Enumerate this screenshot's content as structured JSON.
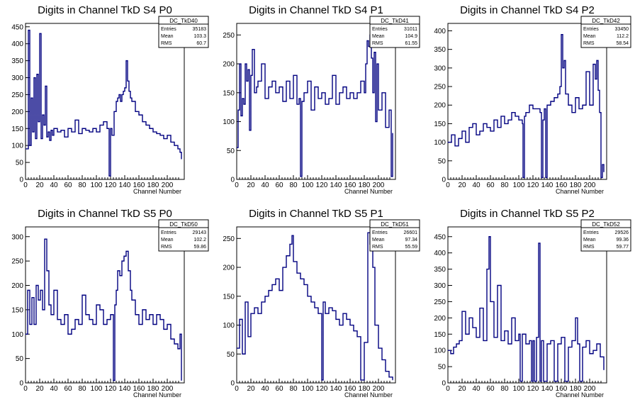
{
  "line_color": "#000080",
  "chart_data": [
    {
      "type": "line",
      "title": "Digits in Channel TkD S4 P0",
      "xlabel": "Channel Number",
      "ylabel": "",
      "xlim": [
        0,
        224
      ],
      "ylim": [
        0,
        460
      ],
      "xticks": [
        0,
        20,
        40,
        60,
        80,
        100,
        120,
        140,
        160,
        180,
        200
      ],
      "yticks": [
        0,
        50,
        100,
        150,
        200,
        250,
        300,
        350,
        400,
        450
      ],
      "stats": {
        "name": "DC_TkD40",
        "entries": "35183",
        "mean": "103.3",
        "rms": "60.7"
      },
      "series": [
        {
          "x": [
            0,
            4,
            6,
            8,
            10,
            12,
            14,
            16,
            18,
            20,
            22,
            24,
            26,
            28,
            30,
            32,
            34,
            36,
            38,
            40,
            45,
            50,
            55,
            60,
            65,
            70,
            75,
            80,
            85,
            90,
            95,
            100,
            105,
            110,
            115,
            118,
            120,
            122,
            125,
            128,
            130,
            132,
            134,
            136,
            138,
            140,
            142,
            144,
            146,
            148,
            150,
            155,
            160,
            165,
            170,
            175,
            180,
            185,
            190,
            195,
            200,
            205,
            210,
            215,
            218,
            220
          ],
          "y": [
            90,
            440,
            100,
            240,
            140,
            300,
            120,
            310,
            170,
            430,
            120,
            190,
            160,
            275,
            125,
            140,
            115,
            145,
            130,
            150,
            140,
            145,
            125,
            150,
            140,
            175,
            135,
            150,
            145,
            140,
            150,
            140,
            160,
            170,
            150,
            10,
            150,
            130,
            200,
            230,
            240,
            250,
            230,
            250,
            260,
            270,
            350,
            290,
            260,
            240,
            230,
            200,
            190,
            170,
            160,
            150,
            140,
            135,
            130,
            120,
            130,
            110,
            100,
            90,
            80,
            60
          ]
        }
      ]
    },
    {
      "type": "line",
      "title": "Digits in Channel TkD S4 P1",
      "xlabel": "Channel Number",
      "ylabel": "",
      "xlim": [
        0,
        224
      ],
      "ylim": [
        0,
        270
      ],
      "xticks": [
        0,
        20,
        40,
        60,
        80,
        100,
        120,
        140,
        160,
        180,
        200
      ],
      "yticks": [
        0,
        50,
        100,
        150,
        200,
        250
      ],
      "stats": {
        "name": "DC_TkD41",
        "entries": "31011",
        "mean": "104.9",
        "rms": "61.55"
      },
      "series": [
        {
          "x": [
            0,
            2,
            4,
            6,
            8,
            10,
            12,
            14,
            16,
            18,
            20,
            22,
            25,
            28,
            30,
            35,
            40,
            45,
            50,
            55,
            60,
            65,
            70,
            75,
            80,
            85,
            88,
            90,
            92,
            95,
            100,
            105,
            110,
            115,
            120,
            125,
            130,
            135,
            140,
            145,
            150,
            155,
            160,
            165,
            170,
            175,
            180,
            182,
            184,
            186,
            188,
            190,
            192,
            194,
            196,
            198,
            200,
            205,
            210,
            215,
            218,
            220
          ],
          "y": [
            55,
            120,
            200,
            110,
            140,
            130,
            200,
            170,
            190,
            85,
            180,
            225,
            150,
            160,
            170,
            200,
            140,
            160,
            170,
            150,
            160,
            135,
            170,
            140,
            180,
            130,
            140,
            5,
            135,
            150,
            170,
            120,
            160,
            140,
            150,
            130,
            140,
            180,
            130,
            150,
            160,
            140,
            150,
            140,
            150,
            170,
            150,
            200,
            240,
            230,
            250,
            210,
            150,
            220,
            100,
            200,
            120,
            150,
            90,
            120,
            5,
            80
          ]
        }
      ]
    },
    {
      "type": "line",
      "title": "Digits in Channel TkD S4 P2",
      "xlabel": "Channel Number",
      "ylabel": "",
      "xlim": [
        0,
        224
      ],
      "ylim": [
        0,
        420
      ],
      "xticks": [
        0,
        20,
        40,
        60,
        80,
        100,
        120,
        140,
        160,
        180,
        200
      ],
      "yticks": [
        0,
        50,
        100,
        150,
        200,
        250,
        300,
        350,
        400
      ],
      "stats": {
        "name": "DC_TkD42",
        "entries": "33450",
        "mean": "112.2",
        "rms": "58.54"
      },
      "series": [
        {
          "x": [
            0,
            5,
            10,
            15,
            20,
            25,
            30,
            35,
            40,
            45,
            50,
            55,
            60,
            65,
            70,
            75,
            80,
            85,
            90,
            95,
            100,
            105,
            106,
            108,
            110,
            115,
            120,
            125,
            130,
            132,
            134,
            136,
            138,
            140,
            145,
            150,
            155,
            158,
            160,
            162,
            164,
            166,
            170,
            175,
            180,
            185,
            190,
            195,
            200,
            205,
            208,
            210,
            212,
            214,
            216,
            218,
            220
          ],
          "y": [
            100,
            120,
            90,
            110,
            130,
            100,
            140,
            150,
            120,
            130,
            150,
            140,
            130,
            160,
            140,
            170,
            150,
            160,
            180,
            170,
            160,
            150,
            5,
            170,
            180,
            200,
            190,
            190,
            180,
            5,
            160,
            190,
            5,
            200,
            210,
            220,
            230,
            250,
            390,
            300,
            320,
            230,
            200,
            180,
            220,
            190,
            200,
            290,
            200,
            310,
            270,
            320,
            240,
            180,
            5,
            40,
            20
          ]
        }
      ]
    },
    {
      "type": "line",
      "title": "Digits in Channel TkD S5 P0",
      "xlabel": "Channel Number",
      "ylabel": "",
      "xlim": [
        0,
        224
      ],
      "ylim": [
        0,
        320
      ],
      "xticks": [
        0,
        20,
        40,
        60,
        80,
        100,
        120,
        140,
        160,
        180,
        200
      ],
      "yticks": [
        0,
        50,
        100,
        150,
        200,
        250,
        300
      ],
      "stats": {
        "name": "DC_TkD50",
        "entries": "29143",
        "mean": "102.2",
        "rms": "59.86"
      },
      "series": [
        {
          "x": [
            0,
            3,
            6,
            9,
            12,
            15,
            18,
            21,
            24,
            27,
            30,
            33,
            36,
            40,
            45,
            50,
            55,
            60,
            65,
            70,
            75,
            80,
            85,
            90,
            95,
            100,
            105,
            110,
            115,
            120,
            124,
            126,
            128,
            130,
            133,
            136,
            139,
            142,
            145,
            148,
            150,
            155,
            160,
            165,
            170,
            175,
            180,
            185,
            190,
            195,
            200,
            205,
            210,
            215,
            218,
            220
          ],
          "y": [
            100,
            190,
            120,
            175,
            120,
            200,
            170,
            190,
            150,
            295,
            230,
            160,
            140,
            190,
            130,
            120,
            140,
            100,
            110,
            130,
            120,
            180,
            140,
            130,
            120,
            160,
            150,
            120,
            130,
            140,
            5,
            160,
            190,
            230,
            220,
            250,
            260,
            270,
            230,
            190,
            170,
            140,
            120,
            150,
            130,
            140,
            120,
            140,
            130,
            110,
            120,
            90,
            80,
            70,
            100,
            5
          ]
        }
      ]
    },
    {
      "type": "line",
      "title": "Digits in Channel TkD S5 P1",
      "xlabel": "Channel Number",
      "ylabel": "",
      "xlim": [
        0,
        224
      ],
      "ylim": [
        0,
        270
      ],
      "xticks": [
        0,
        20,
        40,
        60,
        80,
        100,
        120,
        140,
        160,
        180,
        200
      ],
      "yticks": [
        0,
        50,
        100,
        150,
        200,
        250
      ],
      "stats": {
        "name": "DC_TkD51",
        "entries": "26601",
        "mean": "97.34",
        "rms": "55.59"
      },
      "series": [
        {
          "x": [
            0,
            4,
            8,
            12,
            16,
            20,
            25,
            30,
            35,
            40,
            45,
            50,
            55,
            60,
            65,
            70,
            75,
            78,
            80,
            85,
            90,
            95,
            100,
            105,
            110,
            115,
            120,
            122,
            125,
            130,
            135,
            140,
            145,
            150,
            155,
            160,
            165,
            170,
            175,
            180,
            185,
            188,
            190,
            192,
            195,
            200,
            205,
            210,
            215,
            220
          ],
          "y": [
            60,
            110,
            50,
            140,
            80,
            120,
            130,
            120,
            140,
            150,
            160,
            170,
            180,
            160,
            200,
            220,
            240,
            255,
            210,
            190,
            180,
            170,
            150,
            140,
            130,
            120,
            5,
            140,
            120,
            130,
            125,
            110,
            100,
            120,
            110,
            100,
            90,
            80,
            5,
            70,
            260,
            240,
            250,
            200,
            100,
            60,
            40,
            20,
            10,
            5
          ]
        }
      ]
    },
    {
      "type": "line",
      "title": "Digits in Channel TkD S5 P2",
      "xlabel": "Channel Number",
      "ylabel": "",
      "xlim": [
        0,
        224
      ],
      "ylim": [
        0,
        480
      ],
      "xticks": [
        0,
        20,
        40,
        60,
        80,
        100,
        120,
        140,
        160,
        180,
        200
      ],
      "yticks": [
        0,
        50,
        100,
        150,
        200,
        250,
        300,
        350,
        400,
        450
      ],
      "stats": {
        "name": "DC_TkD52",
        "entries": "29526",
        "mean": "99.36",
        "rms": "59.77"
      },
      "series": [
        {
          "x": [
            0,
            4,
            8,
            12,
            16,
            20,
            25,
            30,
            35,
            40,
            45,
            50,
            55,
            58,
            60,
            65,
            70,
            75,
            80,
            85,
            90,
            95,
            100,
            102,
            105,
            110,
            115,
            118,
            120,
            122,
            125,
            128,
            130,
            132,
            135,
            140,
            145,
            150,
            155,
            160,
            165,
            170,
            175,
            180,
            183,
            186,
            190,
            195,
            200,
            205,
            210,
            215,
            220
          ],
          "y": [
            100,
            90,
            110,
            120,
            130,
            220,
            150,
            200,
            170,
            140,
            230,
            130,
            350,
            450,
            250,
            140,
            300,
            130,
            160,
            120,
            200,
            130,
            150,
            5,
            150,
            120,
            130,
            5,
            130,
            5,
            140,
            430,
            5,
            130,
            5,
            120,
            130,
            5,
            120,
            140,
            5,
            110,
            130,
            200,
            120,
            5,
            110,
            130,
            90,
            100,
            120,
            80,
            40
          ]
        }
      ]
    }
  ]
}
